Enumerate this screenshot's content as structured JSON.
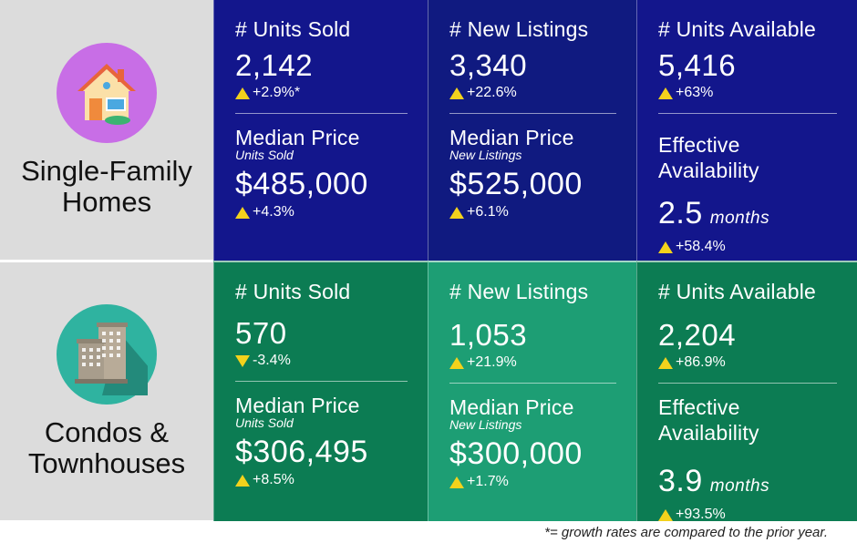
{
  "single_family": {
    "title": "Single-Family\nHomes",
    "icon": "house-icon",
    "icon_bg": "#c86ee6",
    "units_sold": {
      "label": "# Units Sold",
      "value": "2,142",
      "change": "+2.9%*",
      "direction": "up"
    },
    "new_listings": {
      "label": "# New Listings",
      "value": "3,340",
      "change": "+22.6%",
      "direction": "up"
    },
    "units_available": {
      "label": "# Units Available",
      "value": "5,416",
      "change": "+63%",
      "direction": "up"
    },
    "median_sold": {
      "label": "Median Price",
      "sub": "Units Sold",
      "value": "$485,000",
      "change": "+4.3%",
      "direction": "up"
    },
    "median_listings": {
      "label": "Median Price",
      "sub": "New Listings",
      "value": "$525,000",
      "change": "+6.1%",
      "direction": "up"
    },
    "effective": {
      "label": "Effective Availability",
      "value": "2.5",
      "unit": "months",
      "change": "+58.4%",
      "direction": "up"
    }
  },
  "condos": {
    "title": "Condos &\nTownhouses",
    "icon": "buildings-icon",
    "icon_bg": "#2fb3a0",
    "units_sold": {
      "label": "# Units Sold",
      "value": "570",
      "change": "-3.4%",
      "direction": "down"
    },
    "new_listings": {
      "label": "# New Listings",
      "value": "1,053",
      "change": "+21.9%",
      "direction": "up"
    },
    "units_available": {
      "label": "# Units Available",
      "value": "2,204",
      "change": "+86.9%",
      "direction": "up"
    },
    "median_sold": {
      "label": "Median Price",
      "sub": "Units Sold",
      "value": "$306,495",
      "change": "+8.5%",
      "direction": "up"
    },
    "median_listings": {
      "label": "Median Price",
      "sub": "New Listings",
      "value": "$300,000",
      "change": "+1.7%",
      "direction": "up"
    },
    "effective": {
      "label": "Effective Availability",
      "value": "3.9",
      "unit": "months",
      "change": "+93.5%",
      "direction": "up"
    }
  },
  "colors": {
    "navy": "#13168c",
    "green_dark": "#0c7c53",
    "green_mid": "#1d9e74",
    "label_bg": "#dcdcdc",
    "arrow": "#f3d21c"
  },
  "footnote": "*= growth rates are compared to the prior year."
}
